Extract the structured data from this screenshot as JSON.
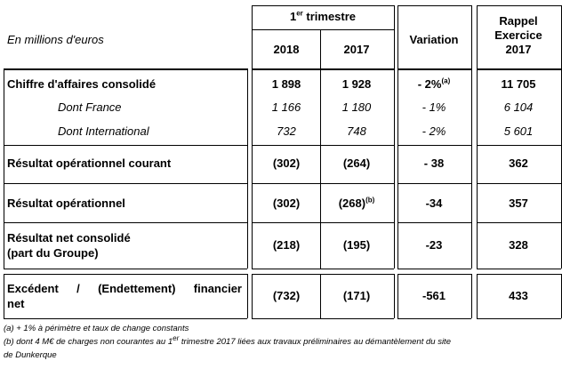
{
  "header": {
    "units": "En millions d'euros",
    "quarter": [
      "1",
      {
        "sup": "er"
      },
      " trimestre"
    ],
    "years": [
      "2018",
      "2017"
    ],
    "variation": "Variation",
    "rappel": [
      "Rappel",
      "Exercice",
      "2017"
    ]
  },
  "rows": [
    {
      "label": [
        "Chiffre d'affaires consolidé"
      ],
      "cells": [
        "1 898",
        "1 928",
        {
          "text": "- 2%",
          "note": "(a)"
        },
        "11 705"
      ]
    },
    {
      "label": [
        "Dont France"
      ],
      "cells": [
        "1 166",
        "1 180",
        "- 1%",
        "6 104"
      ]
    },
    {
      "label": [
        "Dont International"
      ],
      "cells": [
        "732",
        "748",
        "- 2%",
        "5 601"
      ]
    },
    {
      "label": [
        "Résultat opérationnel courant"
      ],
      "cells": [
        "(302)",
        "(264)",
        "- 38",
        "362"
      ]
    },
    {
      "label": [
        "Résultat opérationnel"
      ],
      "cells": [
        "(302)",
        {
          "text": "(268)",
          "note": "(b)"
        },
        "-34",
        "357"
      ]
    },
    {
      "label": [
        "Résultat net consolidé",
        "(part du Groupe)"
      ],
      "cells": [
        "(218)",
        "(195)",
        "-23",
        "328"
      ]
    },
    {
      "label": [
        "Excédent / (Endettement) financier",
        "net"
      ],
      "cells": [
        "(732)",
        "(171)",
        "-561",
        "433"
      ]
    }
  ],
  "footnotes": [
    [
      "(a) + 1% à périmètre et taux de change constants"
    ],
    [
      "(b) dont 4 M€ de charges non courantes au 1",
      {
        "sup": "er"
      },
      " trimestre 2017 liées aux travaux préliminaires au démantèlement du site"
    ],
    [
      "de Dunkerque"
    ]
  ]
}
